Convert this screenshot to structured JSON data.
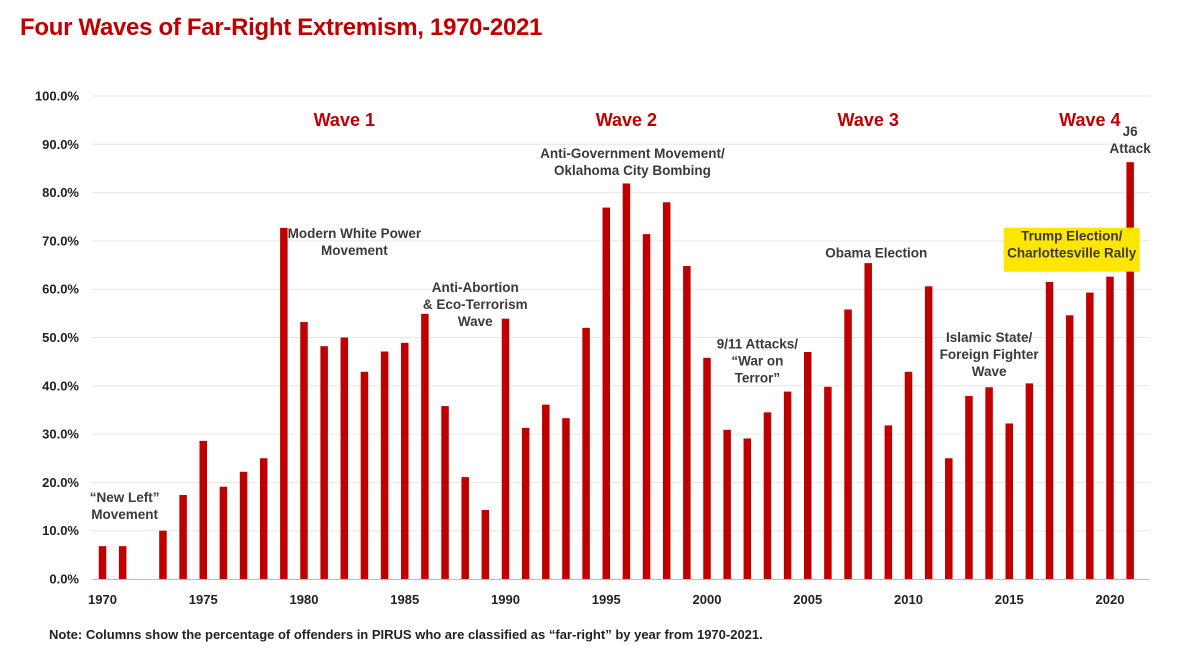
{
  "title": "Four Waves of Far-Right Extremism, 1970-2021",
  "note": "Note: Columns show the percentage of offenders in PIRUS who are classified as “far-right” by year from 1970-2021.",
  "colors": {
    "bar": "#c00000",
    "title": "#c00000",
    "highlight": "#ffe600",
    "grid": "#e6e6e6"
  },
  "chart_data": {
    "type": "bar",
    "title": "Four Waves of Far-Right Extremism, 1970-2021",
    "xlabel": "",
    "ylabel": "",
    "ylim": [
      0,
      100
    ],
    "grid": true,
    "x_ticks": [
      1970,
      1975,
      1980,
      1985,
      1990,
      1995,
      2000,
      2005,
      2010,
      2015,
      2020
    ],
    "y_ticks": [
      "0.0%",
      "10.0%",
      "20.0%",
      "30.0%",
      "40.0%",
      "50.0%",
      "60.0%",
      "70.0%",
      "80.0%",
      "90.0%",
      "100.0%"
    ],
    "categories": [
      1970,
      1971,
      1972,
      1973,
      1974,
      1975,
      1976,
      1977,
      1978,
      1979,
      1980,
      1981,
      1982,
      1983,
      1984,
      1985,
      1986,
      1987,
      1988,
      1989,
      1990,
      1991,
      1992,
      1993,
      1994,
      1995,
      1996,
      1997,
      1998,
      1999,
      2000,
      2001,
      2002,
      2003,
      2004,
      2005,
      2006,
      2007,
      2008,
      2009,
      2010,
      2011,
      2012,
      2013,
      2014,
      2015,
      2016,
      2017,
      2018,
      2019,
      2020,
      2021
    ],
    "values": [
      6.8,
      6.8,
      0,
      10.0,
      17.4,
      28.6,
      19.1,
      22.2,
      25.0,
      72.7,
      53.2,
      48.2,
      50.0,
      42.9,
      47.1,
      48.9,
      54.9,
      35.8,
      21.1,
      14.3,
      53.9,
      31.3,
      36.1,
      33.3,
      52.0,
      76.9,
      81.9,
      71.4,
      78.0,
      64.8,
      45.8,
      30.9,
      29.1,
      34.5,
      38.8,
      47.0,
      39.8,
      55.8,
      65.4,
      31.8,
      42.9,
      60.6,
      25.0,
      37.9,
      39.7,
      32.2,
      40.5,
      61.5,
      54.6,
      59.3,
      62.6,
      86.3
    ],
    "waves": [
      {
        "label": "Wave 1",
        "year": 1982
      },
      {
        "label": "Wave 2",
        "year": 1996
      },
      {
        "label": "Wave 3",
        "year": 2008
      },
      {
        "label": "Wave 4",
        "year": 2019
      }
    ],
    "annotations": [
      {
        "lines": [
          "“New Left”",
          "Movement"
        ],
        "year": 1971.1,
        "value": 17.4,
        "highlight": false
      },
      {
        "lines": [
          "Modern White Power",
          "Movement"
        ],
        "year": 1982.5,
        "value": 72.0,
        "highlight": false
      },
      {
        "lines": [
          "Anti-Abortion",
          "& Eco-Terrorism",
          "Wave"
        ],
        "year": 1988.5,
        "value": 60.9,
        "highlight": false
      },
      {
        "lines": [
          "Anti-Government Movement/",
          "Oklahoma City Bombing"
        ],
        "year": 1996.3,
        "value": 88.6,
        "highlight": false
      },
      {
        "lines": [
          "9/11 Attacks/",
          "“War on",
          "Terror”"
        ],
        "year": 2002.5,
        "value": 49.2,
        "highlight": false
      },
      {
        "lines": [
          "Obama Election"
        ],
        "year": 2008.4,
        "value": 68.0,
        "highlight": false
      },
      {
        "lines": [
          "Islamic State/",
          "Foreign Fighter",
          "Wave"
        ],
        "year": 2014.0,
        "value": 50.5,
        "highlight": false
      },
      {
        "lines": [
          "Trump Election/",
          "Charlottesville Rally"
        ],
        "year": 2018.1,
        "value": 71.5,
        "highlight": true
      },
      {
        "lines": [
          "J6",
          "Attack"
        ],
        "year": 2021.0,
        "value": 93.2,
        "highlight": false
      }
    ]
  }
}
